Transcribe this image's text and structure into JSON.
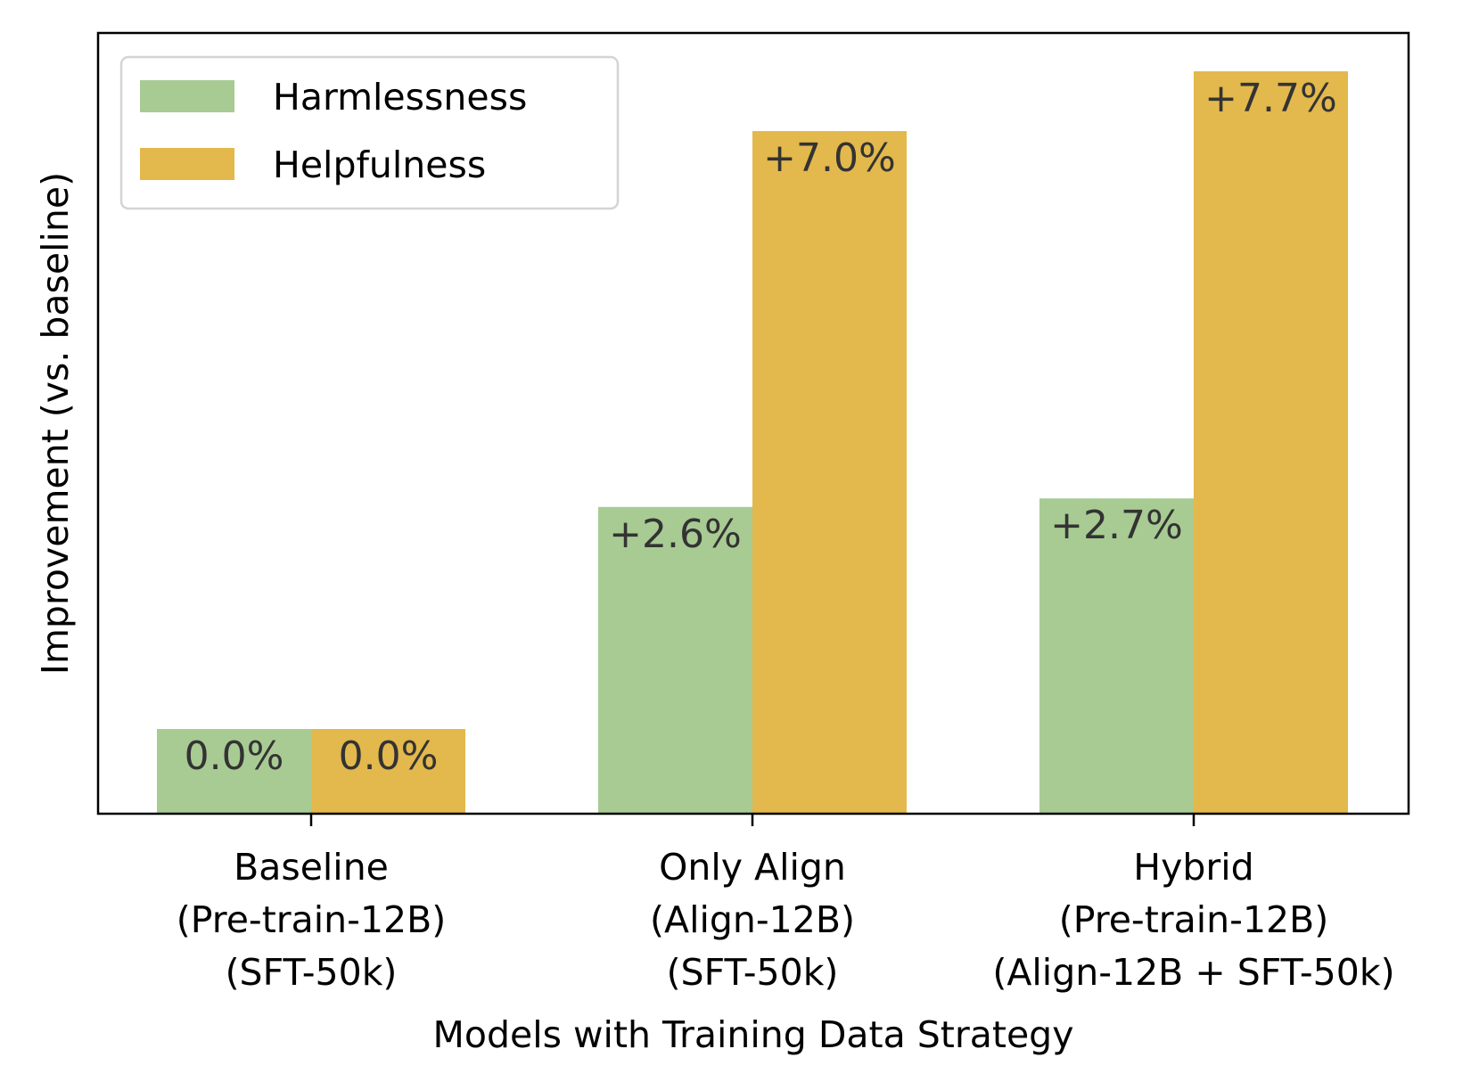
{
  "chart_data": {
    "type": "bar",
    "title": "",
    "xlabel": "Models with Training Data Strategy",
    "ylabel": "Improvement (vs. baseline)",
    "categories": [
      {
        "key": "baseline",
        "lines": [
          "Baseline",
          "(Pre-train-12B)",
          "(SFT-50k)"
        ]
      },
      {
        "key": "only-align",
        "lines": [
          "Only Align",
          "(Align-12B)",
          "(SFT-50k)"
        ]
      },
      {
        "key": "hybrid",
        "lines": [
          "Hybrid",
          "(Pre-train-12B)",
          "(Align-12B + SFT-50k)"
        ]
      }
    ],
    "series": [
      {
        "key": "harmlessness",
        "name": "Harmlessness",
        "color": "#a8cb93",
        "values": [
          0.0,
          2.6,
          2.7
        ],
        "labels": [
          "0.0%",
          "+2.6%",
          "+2.7%"
        ]
      },
      {
        "key": "helpfulness",
        "name": "Helpfulness",
        "color": "#e3b84c",
        "values": [
          0.0,
          7.0,
          7.7
        ],
        "labels": [
          "0.0%",
          "+7.0%",
          "+7.7%"
        ]
      }
    ],
    "axis_min": -0.8,
    "legend_position": "upper-left",
    "grid": false,
    "y_ticks_visible": false
  }
}
